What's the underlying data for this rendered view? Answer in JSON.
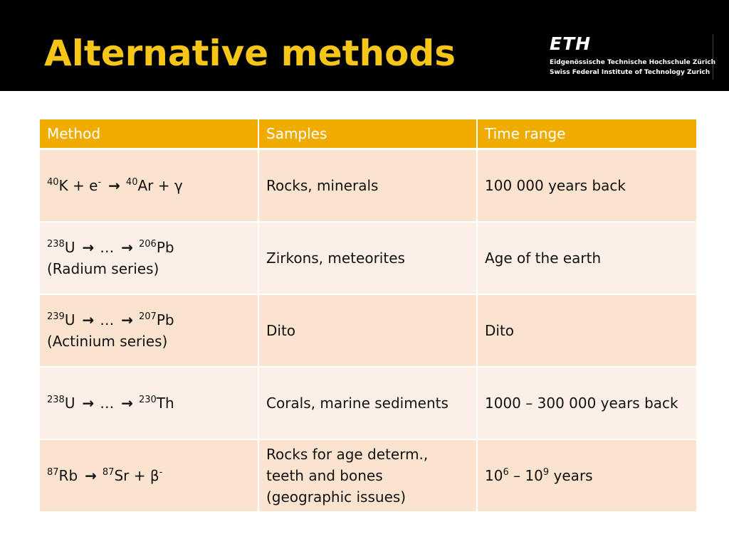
{
  "header": {
    "title": "Alternative methods",
    "logo": {
      "mark": "ETH",
      "line1": "Eidgenössische Technische Hochschule Zürich",
      "line2": "Swiss Federal Institute of Technology Zurich"
    }
  },
  "table": {
    "columns": [
      "Method",
      "Samples",
      "Time range"
    ],
    "rows": [
      {
        "m_p1_sup": "40",
        "m_p1": "K + e",
        "m_p1b_sup": "-",
        "m_p2_sup": "40",
        "m_p2": "Ar + γ",
        "samples": "Rocks, minerals",
        "time": "100 000 years back"
      },
      {
        "m_p1_sup": "238",
        "m_p1": "U",
        "m_mid": "…",
        "m_p2_sup": "206",
        "m_p2": "Pb",
        "m_line2": "(Radium series)",
        "samples": "Zirkons, meteorites",
        "time": "Age of the earth"
      },
      {
        "m_p1_sup": "239",
        "m_p1": "U",
        "m_mid": "…",
        "m_p2_sup": "207",
        "m_p2": "Pb",
        "m_line2": "(Actinium series)",
        "samples": "Dito",
        "time": "Dito"
      },
      {
        "m_p1_sup": "238",
        "m_p1": "U",
        "m_mid": "…",
        "m_p2_sup": "230",
        "m_p2": "Th",
        "samples": "Corals, marine sediments",
        "time": "1000 – 300 000 years back"
      },
      {
        "m_p1_sup": "87",
        "m_p1": "Rb",
        "m_p2_sup": "87",
        "m_p2": "Sr + β",
        "m_p2b_sup": "-",
        "samples_lines": [
          "Rocks for age determ.,",
          "teeth and bones",
          "(geographic issues)"
        ],
        "time_a": "10",
        "time_a_sup": "6",
        "time_b": " – 10",
        "time_b_sup": "9",
        "time_c": " years"
      }
    ]
  },
  "colors": {
    "header_bg": "#000000",
    "title": "#f5c518",
    "table_header": "#f0ab00",
    "row_odd": "#fae3cf",
    "row_even": "#fbefe8"
  },
  "icons": {
    "arrow": "right-arrow-icon"
  }
}
